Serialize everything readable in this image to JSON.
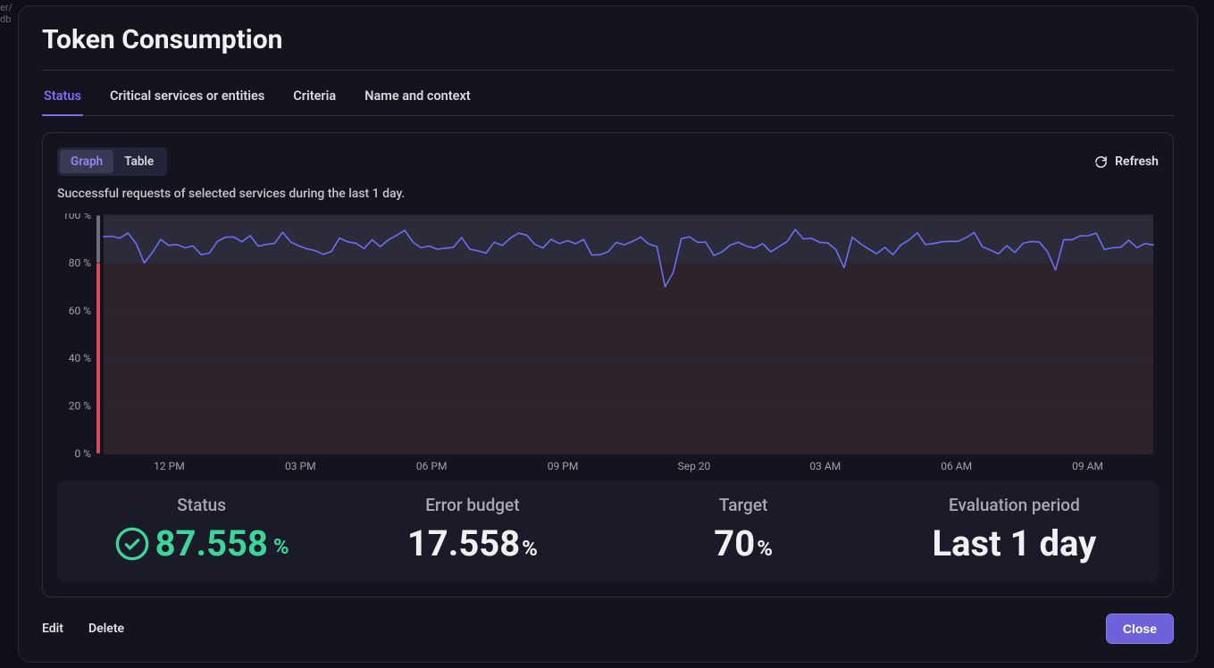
{
  "background_hint": "er/\ndb",
  "header": {
    "title": "Token Consumption"
  },
  "tabs": [
    {
      "label": "Status",
      "active": true
    },
    {
      "label": "Critical services or entities",
      "active": false
    },
    {
      "label": "Criteria",
      "active": false
    },
    {
      "label": "Name and context",
      "active": false
    }
  ],
  "toolbar": {
    "view_toggle": {
      "graph": "Graph",
      "table": "Table",
      "active": "graph"
    },
    "refresh_label": "Refresh"
  },
  "chart": {
    "description": "Successful requests of selected services during the last 1 day.",
    "type": "line",
    "ylim": [
      0,
      100
    ],
    "yticks": [
      0,
      20,
      40,
      60,
      80,
      100
    ],
    "ytick_suffix": " %",
    "xticks": [
      "12 PM",
      "03 PM",
      "06 PM",
      "09 PM",
      "Sep 20",
      "03 AM",
      "06 AM",
      "09 AM"
    ],
    "line_color": "#6d6df5",
    "line_width": 1.6,
    "grid_color": "#2a2a3a",
    "bg_upper": {
      "from": 80,
      "to": 100,
      "color": "#2b2b3a"
    },
    "bg_lower": {
      "from": 0,
      "to": 80,
      "color": "#2d232b"
    },
    "threshold_line": {
      "y": 70,
      "color": "#3a3a4a"
    },
    "side_bar_upper_color": "#6e6e80",
    "side_bar_lower_color": "#d94a55",
    "sample_count": 130,
    "data_mean": 88,
    "data_min_spike": 70,
    "data_max": 94
  },
  "stats": {
    "status": {
      "label": "Status",
      "value": "87.558",
      "unit": "%",
      "color": "#3dd598",
      "icon": "check-circle"
    },
    "error_budget": {
      "label": "Error budget",
      "value": "17.558",
      "unit": "%"
    },
    "target": {
      "label": "Target",
      "value": "70",
      "unit": "%"
    },
    "evaluation": {
      "label": "Evaluation period",
      "value": "Last 1 day"
    }
  },
  "footer": {
    "edit_label": "Edit",
    "delete_label": "Delete",
    "close_label": "Close"
  }
}
